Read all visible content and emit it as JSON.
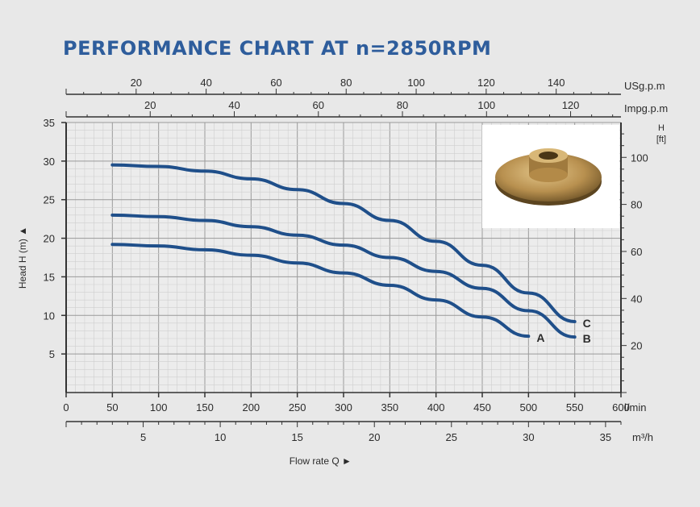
{
  "chart_data": {
    "type": "line",
    "title": "PERFORMANCE CHART AT n=2850RPM",
    "xlabel": "Flow rate Q",
    "ylabel": "Head H (m)",
    "xlim": [
      0,
      600
    ],
    "ylim": [
      0,
      35
    ],
    "grid": true,
    "x_ticks": [
      0,
      50,
      100,
      150,
      200,
      250,
      300,
      350,
      400,
      450,
      500,
      550,
      600
    ],
    "x_unit": "l/min",
    "y_ticks": [
      5,
      10,
      15,
      20,
      25,
      30,
      35
    ],
    "axes": {
      "usgpm": {
        "unit": "USg.p.m",
        "ticks": [
          20,
          40,
          60,
          80,
          100,
          120,
          140
        ]
      },
      "impgpm": {
        "unit": "Impg.p.m",
        "ticks": [
          20,
          40,
          60,
          80,
          100,
          120
        ]
      },
      "m3h": {
        "unit": "m³/h",
        "ticks": [
          5,
          10,
          15,
          20,
          25,
          30,
          35
        ]
      },
      "ft": {
        "label": "H",
        "unit": "[ft]",
        "ticks": [
          20,
          40,
          60,
          80,
          100
        ]
      }
    },
    "series": [
      {
        "name": "A",
        "x": [
          50,
          100,
          150,
          200,
          250,
          300,
          350,
          400,
          450,
          500
        ],
        "y": [
          19.2,
          19.0,
          18.5,
          17.8,
          16.8,
          15.5,
          13.9,
          12.0,
          9.8,
          7.3
        ]
      },
      {
        "name": "B",
        "x": [
          50,
          100,
          150,
          200,
          250,
          300,
          350,
          400,
          450,
          500,
          550
        ],
        "y": [
          23.0,
          22.8,
          22.3,
          21.5,
          20.4,
          19.1,
          17.5,
          15.7,
          13.5,
          10.6,
          7.2
        ]
      },
      {
        "name": "C",
        "x": [
          50,
          100,
          150,
          200,
          250,
          300,
          350,
          400,
          450,
          500,
          550
        ],
        "y": [
          29.5,
          29.3,
          28.7,
          27.7,
          26.3,
          24.5,
          22.3,
          19.6,
          16.5,
          12.9,
          9.2
        ]
      }
    ],
    "colors": {
      "line": "#1f4f8a",
      "grid_major": "#9a9a9a",
      "grid_minor": "#cfcfcf"
    },
    "legend": "direct labels at line ends"
  }
}
